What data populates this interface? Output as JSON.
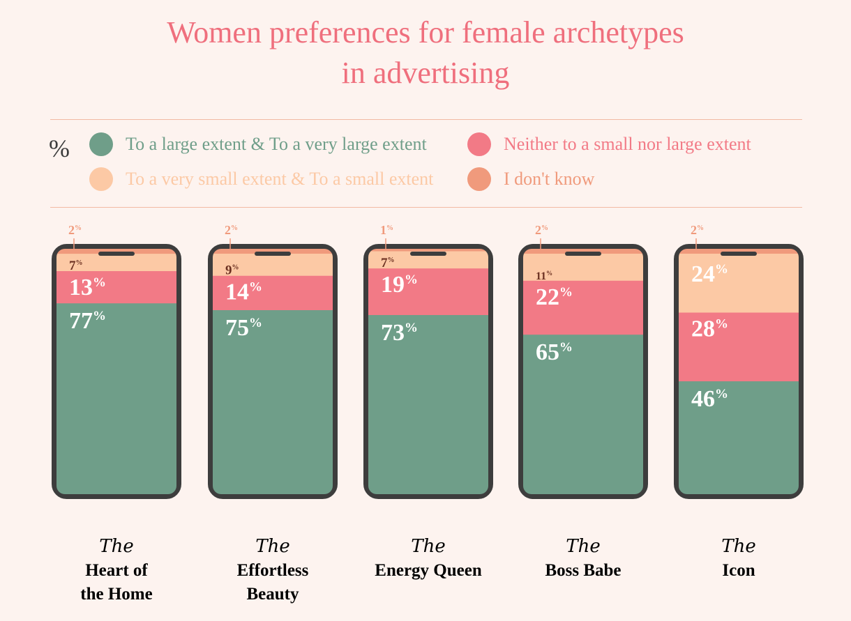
{
  "title_line1": "Women preferences for female archetypes",
  "title_line2": "in advertising",
  "legend": {
    "unit": "%",
    "items": [
      {
        "label": "To a large extent  & To a very large extent",
        "color": "#6f9e89"
      },
      {
        "label": "Neither to a small nor large extent",
        "color": "#f27a86"
      },
      {
        "label": "To a very small extent & To a small extent",
        "color": "#fcc9a5"
      },
      {
        "label": "I don't know",
        "color": "#f09a7c"
      }
    ]
  },
  "chart_data": {
    "type": "bar",
    "stacked": true,
    "unit": "%",
    "categories": [
      "The Heart of the Home",
      "The Effortless Beauty",
      "The Energy Queen",
      "The Boss Babe",
      "The Icon"
    ],
    "captions": [
      {
        "the": "The",
        "lines": [
          "Heart of",
          "the Home"
        ]
      },
      {
        "the": "The",
        "lines": [
          "Effortless",
          "Beauty"
        ]
      },
      {
        "the": "The",
        "lines": [
          "Energy Queen"
        ]
      },
      {
        "the": "The",
        "lines": [
          "Boss Babe"
        ]
      },
      {
        "the": "The",
        "lines": [
          "Icon"
        ]
      }
    ],
    "series": [
      {
        "name": "To a large extent  & To a very large extent",
        "values": [
          77,
          75,
          73,
          65,
          46
        ]
      },
      {
        "name": "Neither to a small nor large extent",
        "values": [
          13,
          14,
          19,
          22,
          28
        ]
      },
      {
        "name": "To a very small extent & To a small extent",
        "values": [
          7,
          9,
          7,
          11,
          24
        ]
      },
      {
        "name": "I don't know",
        "values": [
          2,
          2,
          1,
          2,
          2
        ]
      }
    ],
    "ylim": [
      0,
      100
    ]
  }
}
